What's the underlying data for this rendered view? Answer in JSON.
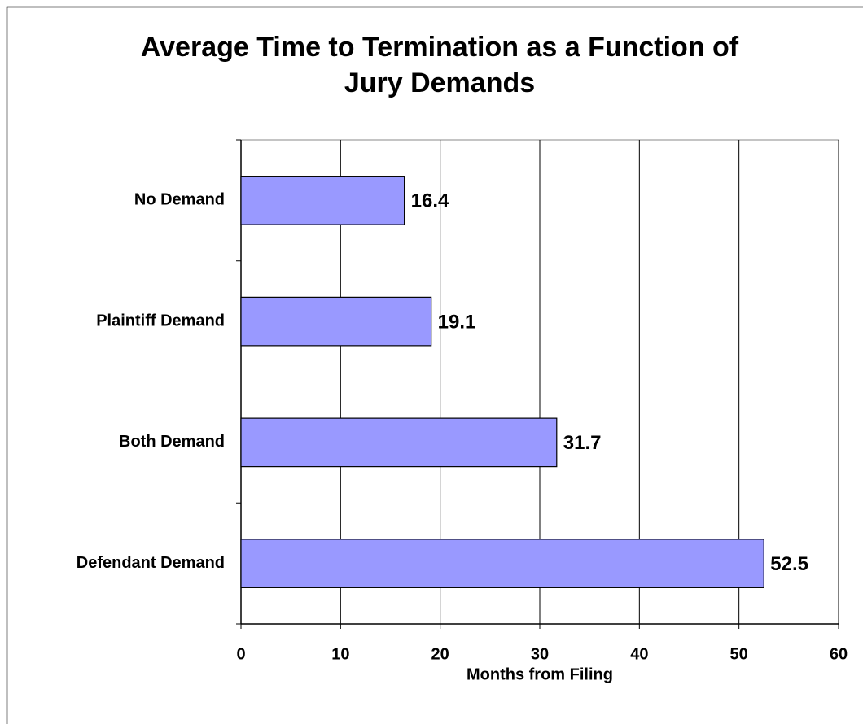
{
  "chart_data": {
    "type": "hbar",
    "title": "Average Time to Termination as a Function of Jury Demands",
    "x_label": "Months from Filing",
    "categories": [
      "No Demand",
      "Plaintiff Demand",
      "Both Demand",
      "Defendant Demand"
    ],
    "values": [
      16.4,
      19.1,
      31.7,
      52.5
    ],
    "color": "#9999ff",
    "xlim": [
      0,
      60
    ],
    "xticks": [
      0,
      10,
      20,
      30,
      40,
      50,
      60
    ],
    "grid": true
  }
}
